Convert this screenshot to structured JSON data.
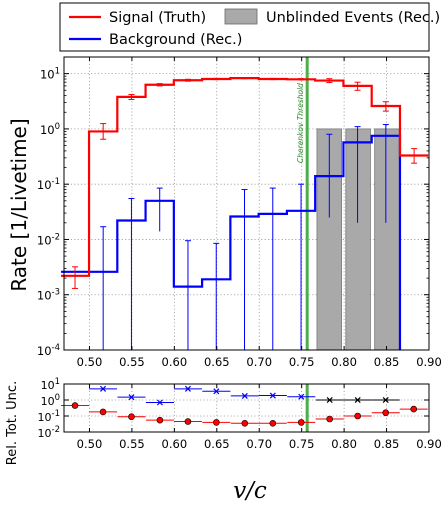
{
  "chart_data": [
    {
      "type": "step",
      "xlabel": "",
      "ylabel": "Rate [1/Livetime]",
      "xlim": [
        0.47,
        0.9
      ],
      "ylim": [
        0.0001,
        20
      ],
      "yscale": "log",
      "grid": true,
      "legend_position": "top",
      "x_ticks": [
        "0.50",
        "0.55",
        "0.60",
        "0.65",
        "0.70",
        "0.75",
        "0.80",
        "0.85",
        "0.90"
      ],
      "y_ticks": [
        "10^1",
        "10^0",
        "10^-1",
        "10^-2",
        "10^-3",
        "10^-4"
      ],
      "legend": [
        {
          "label": "Signal (Truth)",
          "color": "#ff0000",
          "kind": "line"
        },
        {
          "label": "Unblinded Events (Rec.)",
          "color": "#a9a9a9",
          "kind": "box"
        },
        {
          "label": "Background (Rec.)",
          "color": "#0000ff",
          "kind": "line"
        }
      ],
      "annotation": "Cherenkov Threshold",
      "threshold_x": 0.7565,
      "bin_edges": [
        0.4665,
        0.4995,
        0.5328,
        0.5661,
        0.5994,
        0.6327,
        0.666,
        0.6993,
        0.7326,
        0.7659,
        0.7992,
        0.8325,
        0.8658,
        0.8991
      ],
      "series": [
        {
          "name": "Signal (Truth)",
          "color": "#ff0000",
          "values": [
            0.0022,
            0.9,
            3.8,
            6.3,
            7.6,
            8.0,
            8.3,
            8.0,
            7.9,
            7.5,
            6.0,
            2.6,
            0.33
          ],
          "err_low": [
            0.0013,
            0.65,
            3.4,
            6.0,
            7.3,
            7.8,
            8.1,
            7.8,
            7.7,
            6.9,
            5.0,
            2.1,
            0.24
          ],
          "err_high": [
            0.0032,
            1.25,
            4.2,
            6.6,
            7.9,
            8.2,
            8.5,
            8.2,
            8.1,
            8.1,
            7.0,
            3.1,
            0.44
          ]
        },
        {
          "name": "Background (Rec.)",
          "color": "#0000ff",
          "values": [
            0.0026,
            0.0026,
            0.022,
            0.05,
            0.0014,
            0.0019,
            0.026,
            0.029,
            0.033,
            0.14,
            0.57,
            0.75
          ],
          "err_low": [
            0.0001,
            0.0001,
            0.0001,
            0.014,
            0.0001,
            0.0001,
            0.0001,
            0.0001,
            0.0001,
            0.025,
            0.02,
            0.02
          ],
          "err_high": [
            0.0001,
            0.017,
            0.055,
            0.085,
            0.0095,
            0.0085,
            0.08,
            0.085,
            0.1,
            0.8,
            1.1,
            1.2
          ]
        }
      ],
      "unblinded_events": [
        {
          "x_low": 0.768,
          "x_high": 0.797,
          "value": 1.0
        },
        {
          "x_low": 0.802,
          "x_high": 0.831,
          "value": 1.0
        },
        {
          "x_low": 0.836,
          "x_high": 0.865,
          "value": 1.0
        }
      ]
    },
    {
      "type": "scatter",
      "xlabel": "v/c",
      "ylabel": "Rel. Tot. Unc.",
      "xlim": [
        0.47,
        0.9
      ],
      "ylim": [
        0.01,
        10
      ],
      "yscale": "log",
      "grid": true,
      "x_ticks": [
        "0.50",
        "0.55",
        "0.60",
        "0.65",
        "0.70",
        "0.75",
        "0.80",
        "0.85",
        "0.90"
      ],
      "y_ticks": [
        "10^1",
        "10^0",
        "10^-1",
        "10^-2"
      ],
      "series": [
        {
          "name": "Signal (Truth)",
          "color": "#ff0000",
          "marker": "circle",
          "x": [
            0.483,
            0.516,
            0.5495,
            0.583,
            0.616,
            0.6495,
            0.683,
            0.716,
            0.7495,
            0.783,
            0.816,
            0.849,
            0.882
          ],
          "y": [
            0.45,
            0.18,
            0.09,
            0.055,
            0.045,
            0.04,
            0.035,
            0.035,
            0.04,
            0.065,
            0.1,
            0.16,
            0.27
          ]
        },
        {
          "name": "Background (Rec.)",
          "color": "#0000ff",
          "marker": "x",
          "x": [
            0.516,
            0.5495,
            0.583,
            0.616,
            0.6495,
            0.683,
            0.716,
            0.7495
          ],
          "y": [
            5.0,
            1.5,
            0.7,
            5.0,
            3.5,
            1.8,
            1.9,
            1.6
          ]
        },
        {
          "name": "Unblinded Events (Rec.)",
          "color": "#000000",
          "marker": "x",
          "x": [
            0.783,
            0.816,
            0.849
          ],
          "y": [
            1.0,
            1.0,
            1.0
          ]
        }
      ]
    }
  ]
}
